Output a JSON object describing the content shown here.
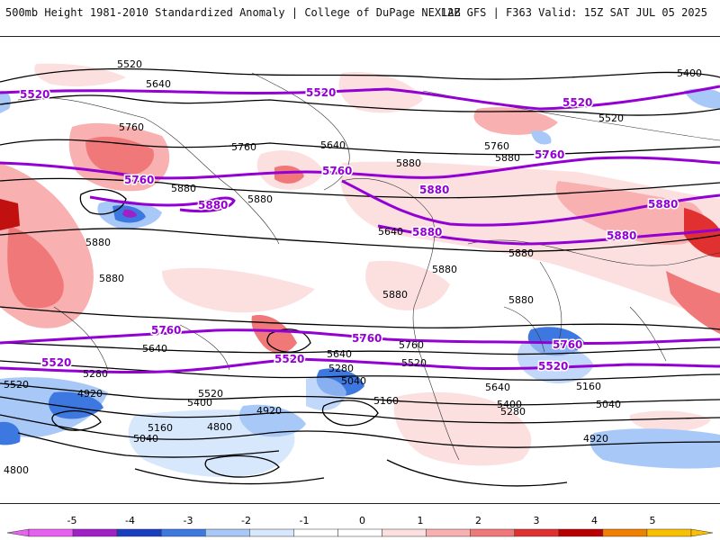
{
  "header": {
    "left_title": "500mb Height 1981-2010 Standardized Anomaly | College of DuPage NEXLAB",
    "right_title": "12Z GFS | F363 Valid: 15Z SAT JUL 05 2025"
  },
  "contours": {
    "black_labels": [
      "5520",
      "5640",
      "5760",
      "5880",
      "5880",
      "5880",
      "5880",
      "5880",
      "5640",
      "5760",
      "5880",
      "5880",
      "5880",
      "5880",
      "5880",
      "5520",
      "5400",
      "5640",
      "5760",
      "5640",
      "5520",
      "5400",
      "5280",
      "4920",
      "5160",
      "5040",
      "4800",
      "4920",
      "4800",
      "5640",
      "5520",
      "5280",
      "5040",
      "5160",
      "5640",
      "5520",
      "5400",
      "5280",
      "5760",
      "5160",
      "5040",
      "4920"
    ],
    "purple_labels": [
      "5520",
      "5520",
      "5520",
      "5760",
      "5760",
      "5760",
      "5880",
      "5880",
      "5880",
      "5880",
      "5880",
      "5760",
      "5760",
      "5760",
      "5520",
      "5520",
      "5520"
    ]
  },
  "colorbar": {
    "ticks": [
      "-5",
      "-4",
      "-3",
      "-2",
      "-1",
      "0",
      "1",
      "2",
      "3",
      "4",
      "5"
    ],
    "colors": [
      "#e860f0",
      "#a020c8",
      "#1a3cc0",
      "#3c78e0",
      "#a8c8f8",
      "#d8e8fc",
      "#ffffff",
      "#ffffff",
      "#fce0e0",
      "#f8b0b0",
      "#f07878",
      "#e03030",
      "#b80000",
      "#f08000",
      "#f8c000"
    ]
  },
  "colors": {
    "purple": "#9400d3",
    "black": "#000000"
  }
}
